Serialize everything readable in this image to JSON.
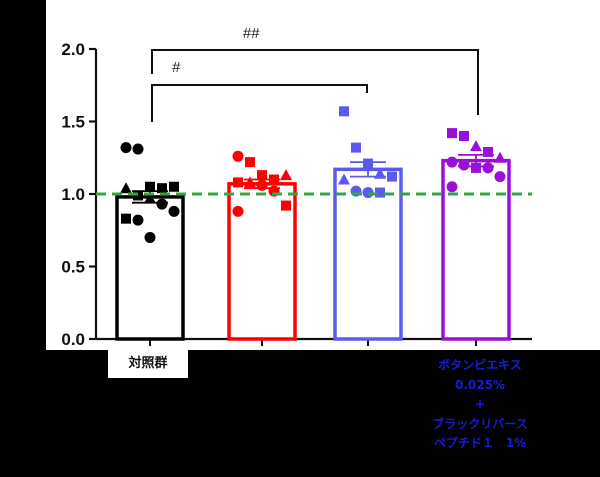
{
  "chart_data": {
    "type": "bar",
    "title": "",
    "xlabel": "",
    "ylabel": "",
    "ylim": [
      0,
      2.0
    ],
    "yticks": [
      "0.0",
      "0.5",
      "1.0",
      "1.5",
      "2.0"
    ],
    "grid": false,
    "reference_line": {
      "y": 1.0,
      "style": "dashed",
      "color": "#2ca84a"
    },
    "categories": [
      "対照群",
      "",
      "",
      "ボタンピエキス 0.025% + ブラックリバースペプチド1 1%"
    ],
    "values": [
      0.98,
      1.07,
      1.17,
      1.23
    ],
    "error": [
      0.04,
      0.03,
      0.05,
      0.04
    ],
    "colors": [
      "#000000",
      "#ff0000",
      "#5a5aee",
      "#9b10d8"
    ],
    "points": [
      [
        1.32,
        1.31,
        1.05,
        1.04,
        1.05,
        1.04,
        0.99,
        0.97,
        0.93,
        0.88,
        0.83,
        0.82,
        0.7
      ],
      [
        1.26,
        1.22,
        1.13,
        1.1,
        1.13,
        1.08,
        1.08,
        1.06,
        1.02,
        0.92,
        0.88
      ],
      [
        1.57,
        1.32,
        1.21,
        1.14,
        1.12,
        1.1,
        1.02,
        1.01,
        1.01
      ],
      [
        1.42,
        1.4,
        1.33,
        1.29,
        1.25,
        1.22,
        1.2,
        1.18,
        1.18,
        1.12,
        1.05
      ]
    ],
    "annotations": [
      {
        "text": "#",
        "from": 0,
        "to": 2
      },
      {
        "text": "##",
        "from": 0,
        "to": 3
      }
    ]
  },
  "labels": {
    "control": "対照群",
    "treatment_lines": [
      "ボタンピエキス",
      "0.025%",
      "+",
      "ブラックリバース",
      "ペプチド１　1%"
    ]
  },
  "sig": {
    "one": "#",
    "two": "##"
  }
}
